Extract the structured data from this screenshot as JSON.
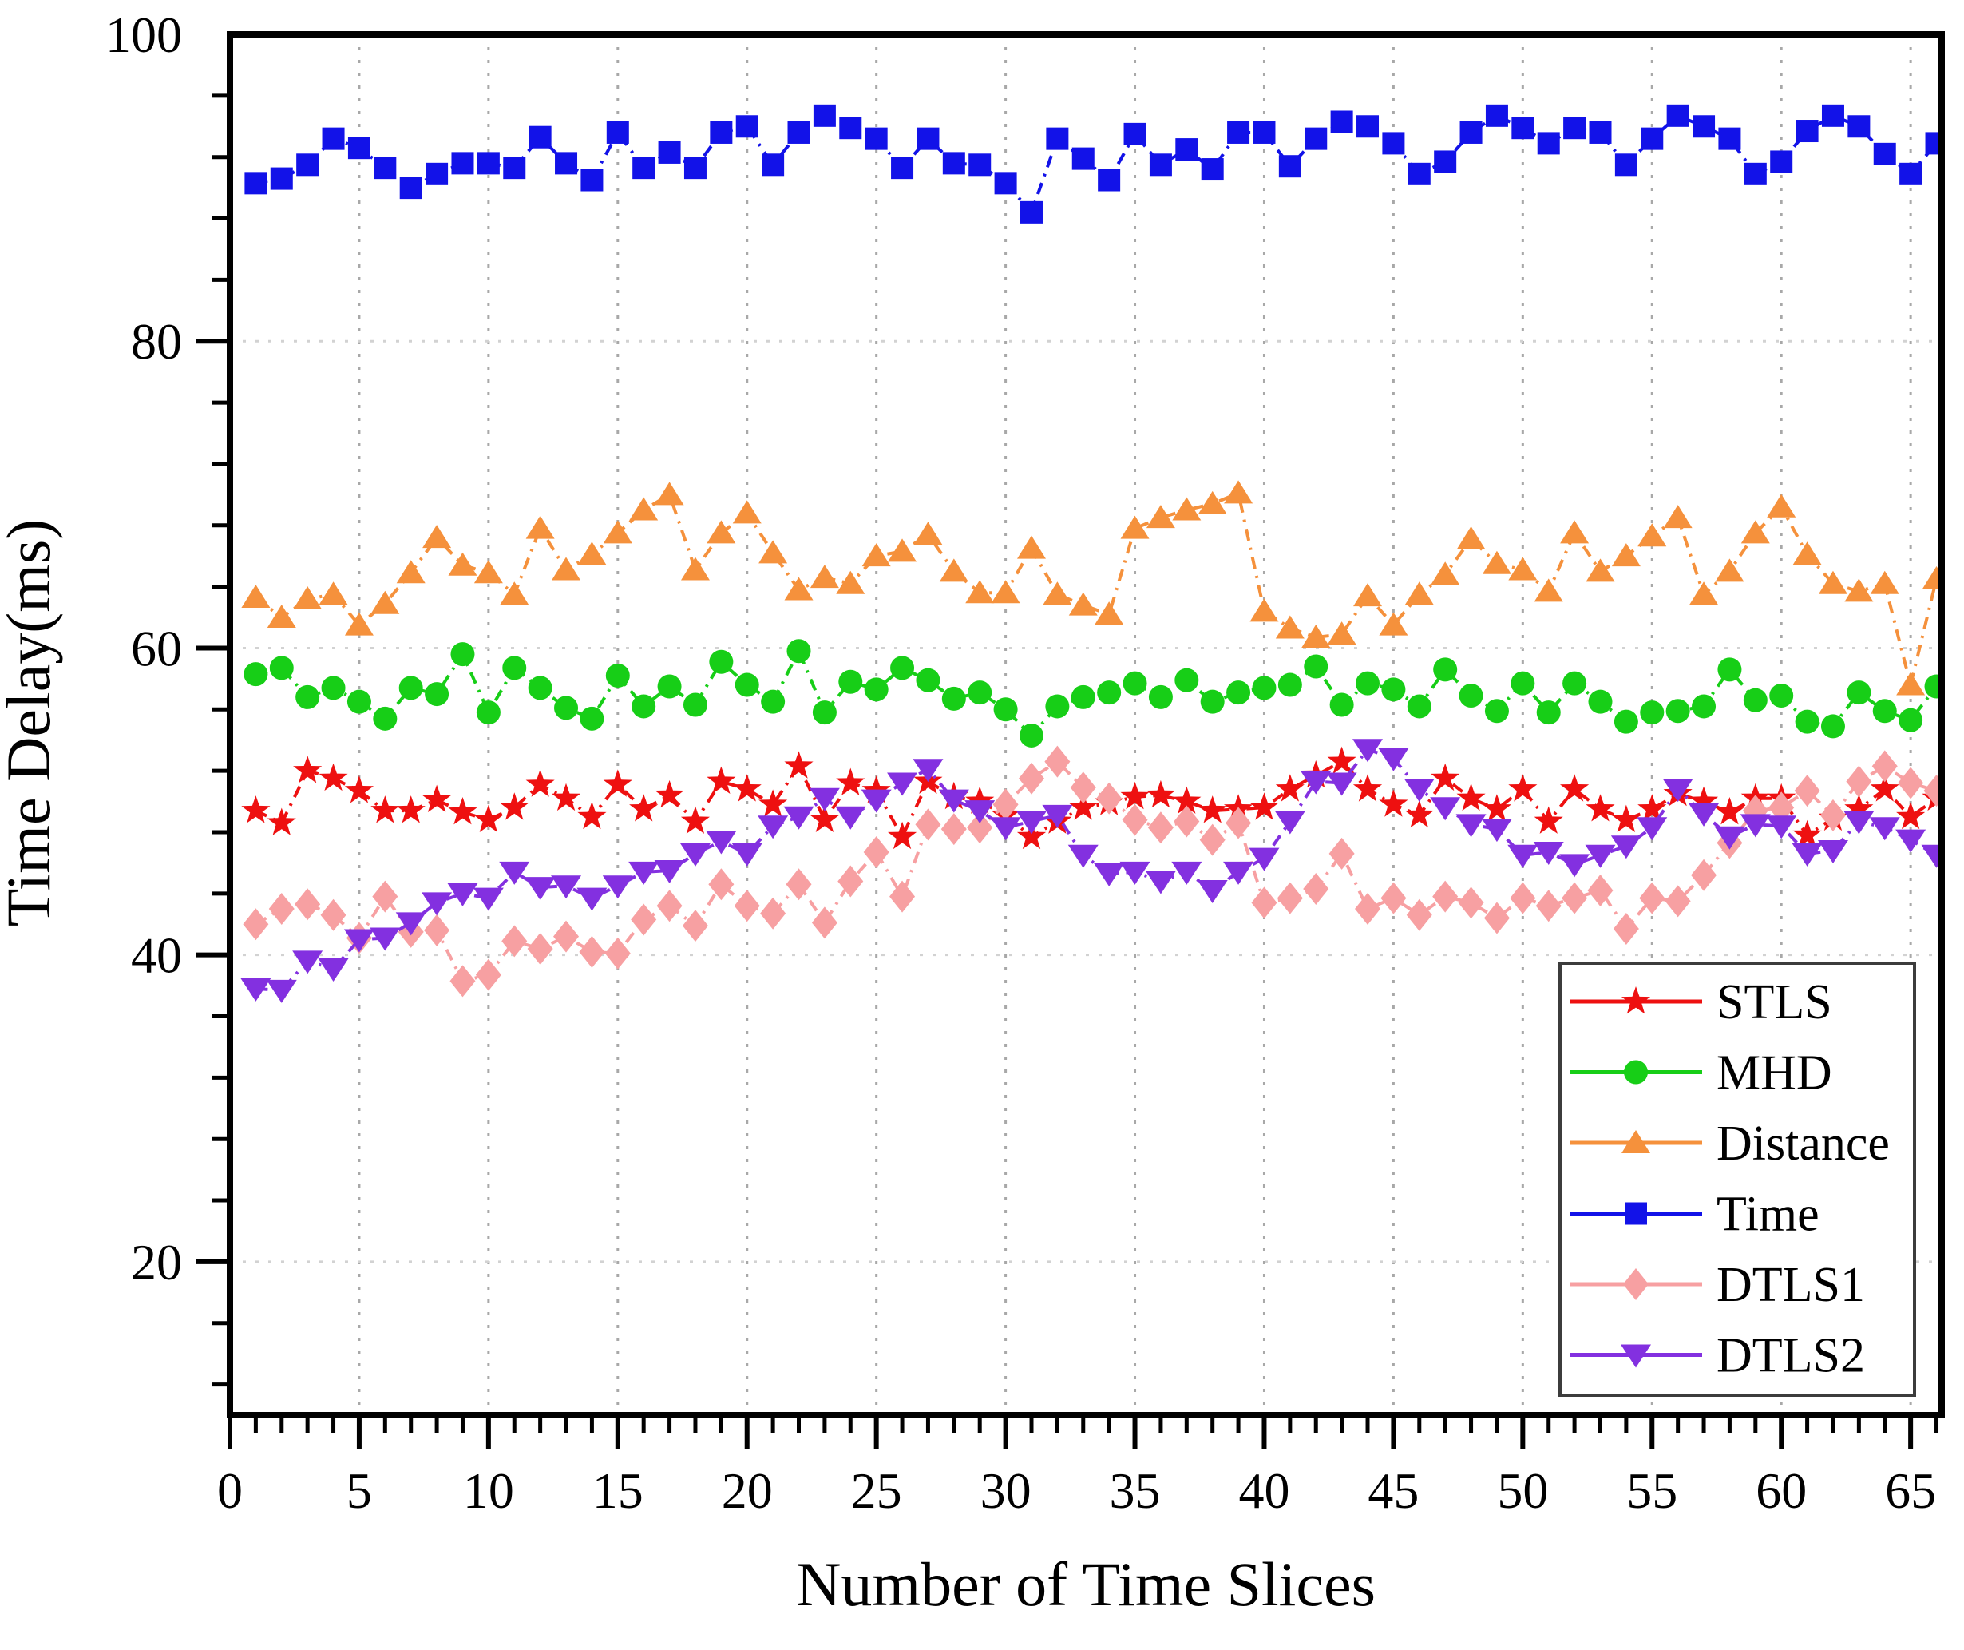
{
  "chart_data": {
    "type": "line",
    "title": "",
    "xlabel": "Number of Time Slices",
    "ylabel": "Time Delay(ms)",
    "xlim": [
      0,
      66.2
    ],
    "ylim": [
      10,
      100
    ],
    "x_major_ticks": [
      0,
      5,
      10,
      15,
      20,
      25,
      30,
      35,
      40,
      45,
      50,
      55,
      60,
      65
    ],
    "x_tick_labels": [
      "0",
      "5",
      "10",
      "15",
      "20",
      "25",
      "30",
      "35",
      "40",
      "45",
      "50",
      "55",
      "60",
      "65"
    ],
    "y_major_ticks": [
      20,
      40,
      60,
      80,
      100
    ],
    "y_tick_labels": [
      "20",
      "40",
      "60",
      "80",
      "100"
    ],
    "x_minor_step": 1,
    "y_minor_step": 4,
    "grid": {
      "vertical": "dotted at x majors",
      "horizontal": "dotted at y majors",
      "color": "#b9b9b9"
    },
    "legend_position": "lower-right",
    "x": [
      1,
      2,
      3,
      4,
      5,
      6,
      7,
      8,
      9,
      10,
      11,
      12,
      13,
      14,
      15,
      16,
      17,
      18,
      19,
      20,
      21,
      22,
      23,
      24,
      25,
      26,
      27,
      28,
      29,
      30,
      31,
      32,
      33,
      34,
      35,
      36,
      37,
      38,
      39,
      40,
      41,
      42,
      43,
      44,
      45,
      46,
      47,
      48,
      49,
      50,
      51,
      52,
      53,
      54,
      55,
      56,
      57,
      58,
      59,
      60,
      61,
      62,
      63,
      64,
      65,
      66
    ],
    "series": [
      {
        "name": "STLS",
        "color": "#ee1010",
        "marker": "star",
        "values": [
          49.4,
          48.6,
          52.0,
          51.5,
          50.7,
          49.4,
          49.4,
          50.1,
          49.3,
          48.8,
          49.6,
          51.1,
          50.2,
          49.0,
          51.1,
          49.5,
          50.4,
          48.7,
          51.3,
          50.8,
          49.8,
          52.3,
          48.8,
          51.2,
          50.7,
          47.7,
          51.3,
          50.3,
          50.0,
          49.1,
          47.7,
          48.7,
          49.6,
          49.9,
          50.3,
          50.4,
          50.0,
          49.4,
          49.5,
          49.6,
          50.8,
          51.7,
          52.6,
          50.8,
          49.8,
          49.1,
          51.5,
          50.2,
          49.5,
          50.8,
          48.7,
          50.8,
          49.5,
          48.8,
          49.5,
          50.5,
          50.0,
          49.3,
          50.2,
          50.2,
          47.8,
          48.9,
          49.5,
          50.8,
          49.0,
          50.2
        ]
      },
      {
        "name": "MHD",
        "color": "#17ce17",
        "marker": "circle",
        "values": [
          58.3,
          58.7,
          56.8,
          57.4,
          56.5,
          55.4,
          57.4,
          57.0,
          59.6,
          55.8,
          58.7,
          57.4,
          56.1,
          55.4,
          58.2,
          56.2,
          57.5,
          56.3,
          59.1,
          57.6,
          56.5,
          59.8,
          55.8,
          57.8,
          57.3,
          58.7,
          57.9,
          56.7,
          57.1,
          56.0,
          54.3,
          56.2,
          56.8,
          57.1,
          57.7,
          56.8,
          57.9,
          56.5,
          57.1,
          57.4,
          57.6,
          58.8,
          56.3,
          57.7,
          57.3,
          56.2,
          58.6,
          56.9,
          55.9,
          57.7,
          55.8,
          57.7,
          56.5,
          55.2,
          55.8,
          55.9,
          56.2,
          58.6,
          56.6,
          56.9,
          55.2,
          54.9,
          57.1,
          55.9,
          55.3,
          57.5
        ]
      },
      {
        "name": "Distance",
        "color": "#f5913c",
        "marker": "triangle-up",
        "values": [
          63.3,
          62.0,
          63.2,
          63.5,
          61.5,
          62.9,
          64.9,
          67.2,
          65.4,
          64.9,
          63.5,
          67.8,
          65.1,
          66.1,
          67.5,
          69.0,
          70.0,
          65.1,
          67.5,
          68.8,
          66.2,
          63.8,
          64.6,
          64.2,
          66.0,
          66.3,
          67.4,
          65.0,
          63.6,
          63.6,
          66.5,
          63.5,
          62.8,
          62.2,
          67.8,
          68.5,
          69.0,
          69.4,
          70.1,
          62.4,
          61.3,
          60.7,
          60.9,
          63.4,
          61.5,
          63.5,
          64.8,
          67.1,
          65.5,
          65.1,
          63.7,
          67.5,
          65.0,
          66.0,
          67.3,
          68.5,
          63.5,
          65.0,
          67.5,
          69.2,
          66.1,
          64.2,
          63.7,
          64.2,
          57.6,
          64.5
        ]
      },
      {
        "name": "Time",
        "color": "#1212e8",
        "marker": "square",
        "values": [
          90.3,
          90.6,
          91.5,
          93.2,
          92.6,
          91.3,
          90.0,
          90.9,
          91.6,
          91.6,
          91.3,
          93.3,
          91.6,
          90.5,
          93.6,
          91.3,
          92.3,
          91.3,
          93.6,
          94.0,
          91.5,
          93.6,
          94.7,
          93.9,
          93.2,
          91.3,
          93.2,
          91.6,
          91.5,
          90.3,
          88.4,
          93.2,
          91.9,
          90.5,
          93.5,
          91.5,
          92.5,
          91.2,
          93.6,
          93.6,
          91.4,
          93.2,
          94.3,
          94.0,
          92.9,
          90.9,
          91.7,
          93.6,
          94.7,
          93.9,
          92.9,
          93.9,
          93.6,
          91.5,
          93.2,
          94.7,
          94.0,
          93.2,
          90.9,
          91.7,
          93.7,
          94.7,
          94.0,
          92.2,
          90.9,
          92.9
        ]
      },
      {
        "name": "DTLS1",
        "color": "#f7a0a2",
        "marker": "diamond",
        "values": [
          42.0,
          43.0,
          43.3,
          42.6,
          41.1,
          43.8,
          41.5,
          41.6,
          38.3,
          38.7,
          40.9,
          40.4,
          41.2,
          40.2,
          40.1,
          42.3,
          43.2,
          41.9,
          44.6,
          43.2,
          42.7,
          44.6,
          42.1,
          44.8,
          46.7,
          43.8,
          48.5,
          48.2,
          48.3,
          49.8,
          51.5,
          52.6,
          50.9,
          50.2,
          48.8,
          48.3,
          48.7,
          47.5,
          48.6,
          43.4,
          43.7,
          44.3,
          46.6,
          43.0,
          43.7,
          42.6,
          43.8,
          43.4,
          42.4,
          43.7,
          43.2,
          43.7,
          44.2,
          41.7,
          43.7,
          43.5,
          45.2,
          47.3,
          49.4,
          49.6,
          50.7,
          49.1,
          51.3,
          52.3,
          51.2,
          50.7
        ]
      },
      {
        "name": "DTLS2",
        "color": "#8330e0",
        "marker": "triangle-down",
        "values": [
          37.8,
          37.7,
          39.6,
          39.1,
          41.0,
          41.1,
          42.1,
          43.4,
          44.0,
          43.7,
          45.4,
          44.4,
          44.5,
          43.7,
          44.5,
          45.4,
          45.5,
          46.6,
          47.4,
          46.6,
          48.4,
          49.0,
          50.2,
          49.0,
          50.1,
          51.2,
          52.1,
          50.1,
          49.4,
          48.3,
          48.7,
          49.1,
          46.5,
          45.3,
          45.4,
          44.8,
          45.4,
          44.2,
          45.4,
          46.3,
          48.7,
          51.3,
          51.2,
          53.4,
          52.8,
          50.8,
          49.6,
          48.5,
          48.2,
          46.5,
          46.7,
          45.9,
          46.5,
          47.1,
          48.3,
          50.8,
          49.2,
          47.7,
          48.5,
          48.4,
          46.6,
          46.8,
          48.7,
          48.3,
          47.5,
          46.5
        ]
      }
    ],
    "legend_entries": [
      "STLS",
      "MHD",
      "Distance",
      "Time",
      "DTLS1",
      "DTLS2"
    ]
  }
}
